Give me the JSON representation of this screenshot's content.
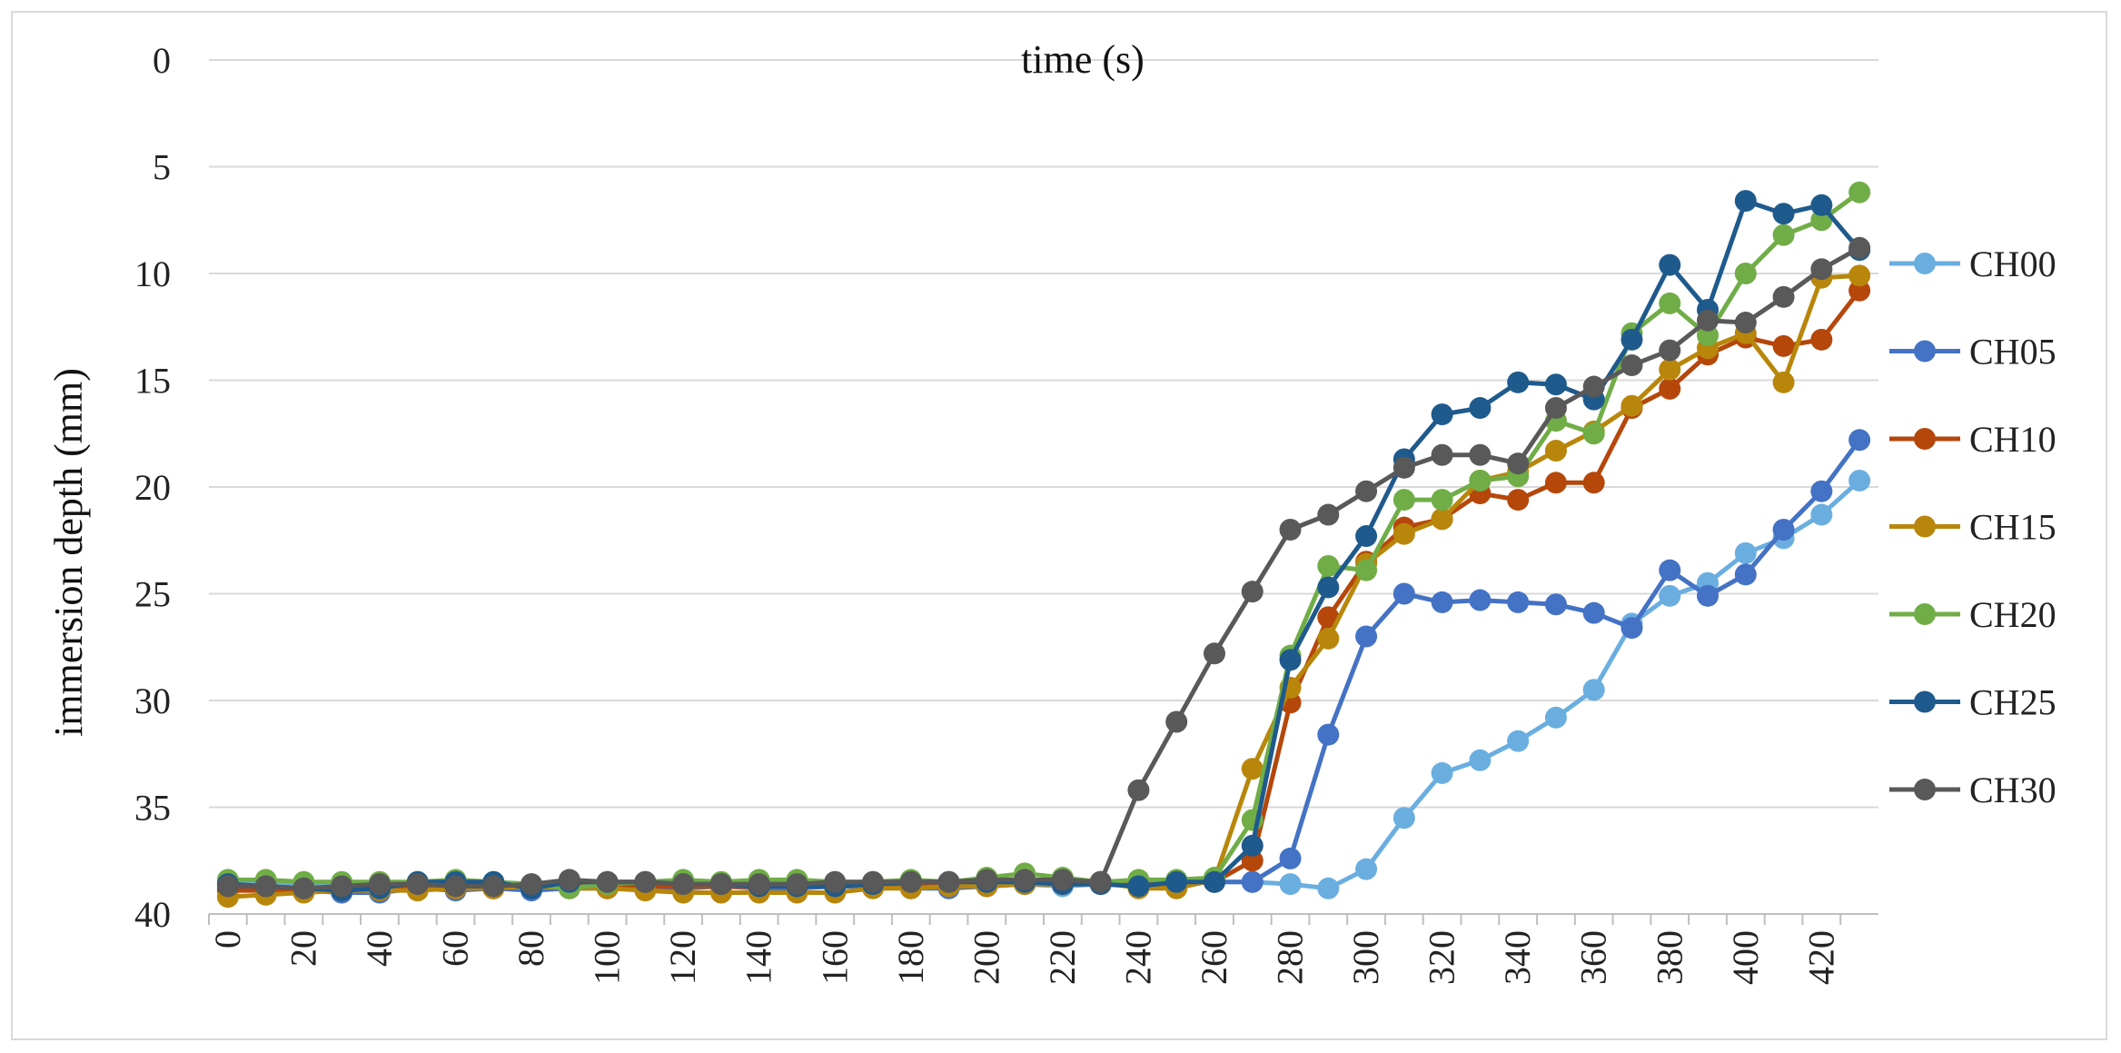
{
  "chart_data": {
    "type": "line",
    "title": "time (s)",
    "xlabel": "time (s)",
    "ylabel": "immersion depth (mm)",
    "y_inverted": true,
    "ylim": [
      0,
      40
    ],
    "yticks": [
      0,
      5,
      10,
      15,
      20,
      25,
      30,
      35,
      40
    ],
    "x": [
      0,
      10,
      20,
      30,
      40,
      50,
      60,
      70,
      80,
      90,
      100,
      110,
      120,
      130,
      140,
      150,
      160,
      170,
      180,
      190,
      200,
      210,
      220,
      230,
      240,
      250,
      260,
      270,
      280,
      290,
      300,
      310,
      320,
      330,
      340,
      350,
      360,
      370,
      380,
      390,
      400,
      410,
      420,
      430
    ],
    "xtick_labels": [
      "0",
      "20",
      "40",
      "60",
      "80",
      "100",
      "120",
      "140",
      "160",
      "180",
      "200",
      "220",
      "240",
      "260",
      "280",
      "300",
      "320",
      "340",
      "360",
      "380",
      "400",
      "420"
    ],
    "grid": true,
    "legend_position": "right",
    "series": [
      {
        "name": "CH00",
        "color": "#6aaee0",
        "values": [
          38.5,
          38.6,
          38.6,
          38.7,
          38.6,
          38.6,
          38.6,
          38.6,
          38.7,
          38.6,
          38.6,
          38.6,
          38.6,
          38.6,
          38.6,
          38.6,
          38.6,
          38.6,
          38.6,
          38.6,
          38.7,
          38.6,
          38.7,
          38.6,
          38.6,
          38.5,
          38.5,
          38.5,
          38.6,
          38.8,
          37.9,
          35.5,
          33.4,
          32.8,
          31.9,
          30.8,
          29.5,
          26.4,
          25.1,
          24.5,
          23.1,
          22.4,
          21.3,
          19.7
        ]
      },
      {
        "name": "CH05",
        "color": "#4472c4",
        "values": [
          38.8,
          38.9,
          38.9,
          39.0,
          39.0,
          38.8,
          38.9,
          38.8,
          38.9,
          38.8,
          38.8,
          38.8,
          38.8,
          38.7,
          38.8,
          38.8,
          38.7,
          38.7,
          38.8,
          38.8,
          38.7,
          38.6,
          38.6,
          38.5,
          38.5,
          38.5,
          38.5,
          38.5,
          37.4,
          31.6,
          27.0,
          25.0,
          25.4,
          25.3,
          25.4,
          25.5,
          25.9,
          26.6,
          23.9,
          25.1,
          24.1,
          22.0,
          20.2,
          17.8
        ]
      },
      {
        "name": "CH10",
        "color": "#b5470b",
        "values": [
          38.9,
          38.9,
          38.8,
          38.8,
          38.8,
          38.8,
          38.8,
          38.8,
          38.7,
          38.7,
          38.7,
          38.7,
          38.7,
          38.7,
          38.7,
          38.7,
          38.7,
          38.6,
          38.6,
          38.6,
          38.6,
          38.6,
          38.6,
          38.6,
          38.6,
          38.6,
          38.5,
          37.5,
          30.1,
          26.1,
          23.5,
          21.9,
          21.5,
          20.3,
          20.6,
          19.8,
          19.8,
          16.3,
          15.4,
          13.8,
          13.0,
          13.4,
          13.1,
          10.8
        ]
      },
      {
        "name": "CH15",
        "color": "#b8860b",
        "values": [
          39.2,
          39.1,
          39.0,
          38.9,
          38.9,
          38.9,
          38.8,
          38.8,
          38.7,
          38.8,
          38.8,
          38.9,
          39.0,
          39.0,
          39.0,
          39.0,
          39.0,
          38.8,
          38.8,
          38.7,
          38.7,
          38.6,
          38.6,
          38.5,
          38.8,
          38.8,
          38.4,
          33.2,
          29.4,
          27.1,
          23.6,
          22.2,
          21.5,
          19.7,
          19.3,
          18.3,
          17.4,
          16.2,
          14.5,
          13.5,
          12.8,
          15.1,
          10.2,
          10.1
        ]
      },
      {
        "name": "CH20",
        "color": "#70ad47",
        "values": [
          38.4,
          38.4,
          38.5,
          38.5,
          38.5,
          38.5,
          38.4,
          38.5,
          38.6,
          38.8,
          38.6,
          38.5,
          38.4,
          38.5,
          38.4,
          38.4,
          38.5,
          38.5,
          38.4,
          38.5,
          38.3,
          38.1,
          38.3,
          38.5,
          38.4,
          38.4,
          38.3,
          35.6,
          27.9,
          23.7,
          23.9,
          20.6,
          20.6,
          19.7,
          19.5,
          16.9,
          17.5,
          12.8,
          11.4,
          12.9,
          10.0,
          8.2,
          7.5,
          6.2
        ]
      },
      {
        "name": "CH25",
        "color": "#1f5a8c",
        "values": [
          38.6,
          38.7,
          38.8,
          38.9,
          38.8,
          38.5,
          38.5,
          38.5,
          38.8,
          38.5,
          38.5,
          38.5,
          38.6,
          38.6,
          38.7,
          38.7,
          38.7,
          38.6,
          38.5,
          38.5,
          38.5,
          38.5,
          38.6,
          38.6,
          38.7,
          38.5,
          38.5,
          36.8,
          28.1,
          24.7,
          22.3,
          18.7,
          16.6,
          16.3,
          15.1,
          15.2,
          15.9,
          13.1,
          9.6,
          11.7,
          6.6,
          7.2,
          6.8,
          8.9
        ]
      },
      {
        "name": "CH30",
        "color": "#595959",
        "values": [
          38.7,
          38.7,
          38.8,
          38.7,
          38.6,
          38.6,
          38.7,
          38.7,
          38.6,
          38.4,
          38.5,
          38.5,
          38.6,
          38.6,
          38.6,
          38.6,
          38.5,
          38.5,
          38.5,
          38.5,
          38.4,
          38.4,
          38.4,
          38.5,
          34.2,
          31.0,
          27.8,
          24.9,
          22.0,
          21.3,
          20.2,
          19.1,
          18.5,
          18.5,
          18.9,
          16.3,
          15.3,
          14.3,
          13.6,
          12.2,
          12.3,
          11.1,
          9.8,
          8.8
        ]
      }
    ]
  }
}
